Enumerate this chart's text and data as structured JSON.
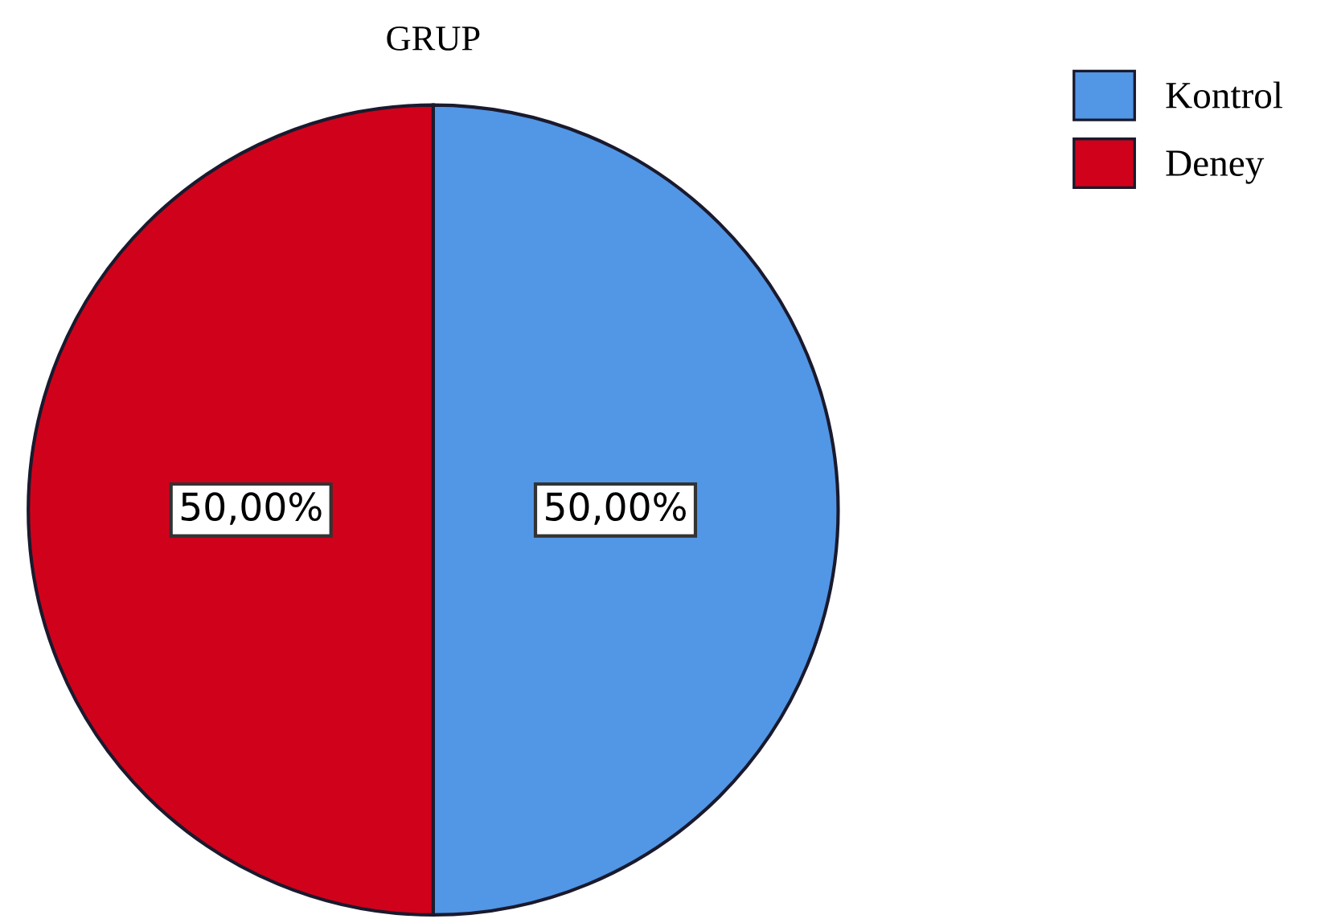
{
  "chart_data": {
    "type": "pie",
    "title": "GRUP",
    "categories": [
      "Kontrol",
      "Deney"
    ],
    "values": [
      50,
      50
    ],
    "colors": [
      "#5296e6",
      "#d0021b"
    ],
    "value_labels": [
      "50,00%",
      "50,00%"
    ],
    "legend": "top right"
  }
}
